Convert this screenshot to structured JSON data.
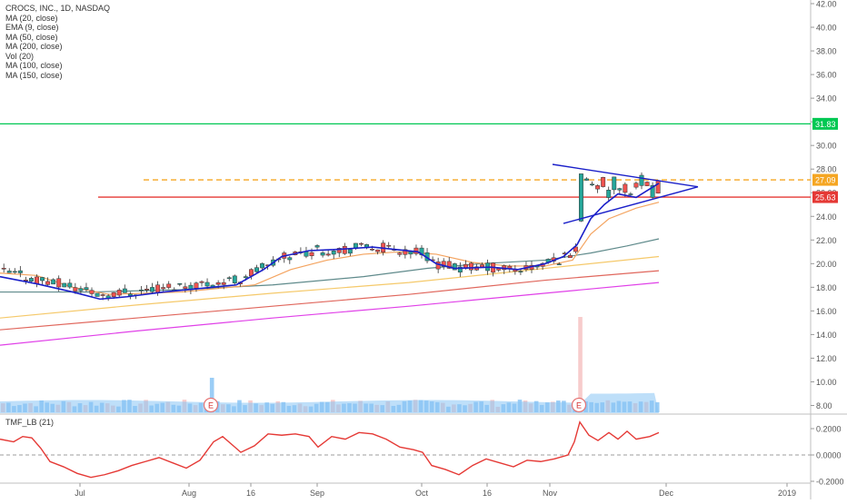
{
  "legend": {
    "title": "CROCS, INC., 1D, NASDAQ",
    "indicators": [
      "MA (20, close)",
      "EMA (9, close)",
      "MA (50, close)",
      "MA (200, close)",
      "Vol (20)",
      "MA (100, close)",
      "MA (150, close)"
    ]
  },
  "colors": {
    "candle_up": "#26a69a",
    "candle_down": "#ef5350",
    "ema9": "#1a1fc9",
    "ma20": "#f4a460",
    "ma50": "#5f8a8b",
    "ma100": "#f5c96a",
    "ma150": "#e0665c",
    "ma200": "#e040e8",
    "volume": "#89c4f4",
    "resistance_line": "#00c853",
    "support_line": "#e53935",
    "breakout_line": "#f5a623",
    "triangle": "#1a1fc9",
    "tmf": "#e53935"
  },
  "chart_data": [
    {
      "type": "candlestick",
      "title": "CROCS, INC., 1D, NASDAQ",
      "ylim": [
        7,
        42.5
      ],
      "y_ticks": [
        "42.00",
        "40.00",
        "38.00",
        "36.00",
        "34.00",
        "32.00",
        "30.00",
        "28.00",
        "26.00",
        "24.00",
        "22.00",
        "20.00",
        "18.00",
        "16.00",
        "14.00",
        "12.00",
        "10.00",
        "8.00"
      ],
      "x_tick_labels": [
        "Jul",
        "Aug",
        "16",
        "Sep",
        "Oct",
        "16",
        "Nov",
        "Dec",
        "2019"
      ],
      "price_labels": [
        {
          "value": "31.83",
          "color": "#00c853"
        },
        {
          "value": "27.09",
          "color": "#f5a623"
        },
        {
          "value": "25.63",
          "color": "#e53935"
        }
      ],
      "levels": {
        "resistance": 31.83,
        "breakout": 27.09,
        "support": 25.63
      },
      "series": [
        {
          "name": "EMA (9, close)",
          "values": [
            [
              0,
              18.9
            ],
            [
              40,
              18.3
            ],
            [
              80,
              17.6
            ],
            [
              110,
              17.0
            ],
            [
              140,
              17.2
            ],
            [
              180,
              17.6
            ],
            [
              220,
              17.9
            ],
            [
              260,
              18.2
            ],
            [
              290,
              19.5
            ],
            [
              310,
              20.6
            ],
            [
              340,
              21.1
            ],
            [
              370,
              21.2
            ],
            [
              410,
              21.4
            ],
            [
              460,
              21.0
            ],
            [
              480,
              20.0
            ],
            [
              500,
              19.6
            ],
            [
              540,
              19.7
            ],
            [
              570,
              19.5
            ],
            [
              600,
              20.0
            ],
            [
              620,
              20.6
            ],
            [
              635,
              21.6
            ],
            [
              650,
              23.8
            ],
            [
              665,
              25.0
            ],
            [
              680,
              25.9
            ],
            [
              700,
              25.6
            ],
            [
              725,
              26.8
            ]
          ]
        },
        {
          "name": "MA (20, close)",
          "values": [
            [
              0,
              19.2
            ],
            [
              40,
              19.0
            ],
            [
              80,
              18.0
            ],
            [
              120,
              17.4
            ],
            [
              160,
              17.5
            ],
            [
              200,
              17.6
            ],
            [
              240,
              17.9
            ],
            [
              280,
              18.2
            ],
            [
              320,
              19.5
            ],
            [
              360,
              20.3
            ],
            [
              400,
              20.8
            ],
            [
              440,
              21.0
            ],
            [
              480,
              20.8
            ],
            [
              520,
              20.1
            ],
            [
              560,
              19.8
            ],
            [
              600,
              19.8
            ],
            [
              630,
              20.3
            ],
            [
              650,
              22.5
            ],
            [
              670,
              23.8
            ],
            [
              700,
              24.7
            ],
            [
              725,
              25.2
            ]
          ]
        },
        {
          "name": "MA (50, close)",
          "values": [
            [
              0,
              17.6
            ],
            [
              100,
              17.6
            ],
            [
              200,
              17.8
            ],
            [
              300,
              18.2
            ],
            [
              400,
              18.9
            ],
            [
              470,
              19.6
            ],
            [
              530,
              20.0
            ],
            [
              600,
              20.3
            ],
            [
              650,
              20.9
            ],
            [
              690,
              21.5
            ],
            [
              725,
              22.1
            ]
          ]
        },
        {
          "name": "MA (100, close)",
          "values": [
            [
              0,
              15.4
            ],
            [
              150,
              16.5
            ],
            [
              300,
              17.5
            ],
            [
              450,
              18.4
            ],
            [
              600,
              19.6
            ],
            [
              725,
              20.6
            ]
          ]
        },
        {
          "name": "MA (150, close)",
          "values": [
            [
              0,
              14.4
            ],
            [
              150,
              15.4
            ],
            [
              300,
              16.4
            ],
            [
              450,
              17.4
            ],
            [
              600,
              18.6
            ],
            [
              725,
              19.4
            ]
          ]
        },
        {
          "name": "MA (200, close)",
          "values": [
            [
              0,
              13.1
            ],
            [
              150,
              14.3
            ],
            [
              300,
              15.4
            ],
            [
              450,
              16.4
            ],
            [
              600,
              17.5
            ],
            [
              725,
              18.4
            ]
          ]
        }
      ],
      "triangle": {
        "upper": [
          [
            608,
            28.4
          ],
          [
            768,
            26.5
          ]
        ],
        "lower": [
          [
            620,
            23.4
          ],
          [
            768,
            26.5
          ]
        ]
      }
    },
    {
      "type": "line",
      "title": "TMF_LB (21)",
      "ylim": [
        -0.22,
        0.28
      ],
      "y_ticks": [
        "0.2000",
        "0.0000",
        "-0.2000"
      ],
      "series": [
        {
          "name": "TMF_LB (21)",
          "values": [
            [
              0,
              0.12
            ],
            [
              15,
              0.1
            ],
            [
              25,
              0.14
            ],
            [
              35,
              0.13
            ],
            [
              45,
              0.05
            ],
            [
              55,
              -0.05
            ],
            [
              70,
              -0.09
            ],
            [
              85,
              -0.14
            ],
            [
              100,
              -0.17
            ],
            [
              115,
              -0.15
            ],
            [
              130,
              -0.12
            ],
            [
              145,
              -0.08
            ],
            [
              160,
              -0.05
            ],
            [
              175,
              -0.02
            ],
            [
              190,
              -0.06
            ],
            [
              205,
              -0.1
            ],
            [
              220,
              -0.04
            ],
            [
              235,
              0.1
            ],
            [
              245,
              0.14
            ],
            [
              255,
              0.08
            ],
            [
              265,
              0.02
            ],
            [
              280,
              0.07
            ],
            [
              295,
              0.16
            ],
            [
              310,
              0.15
            ],
            [
              325,
              0.16
            ],
            [
              340,
              0.14
            ],
            [
              350,
              0.06
            ],
            [
              365,
              0.14
            ],
            [
              380,
              0.12
            ],
            [
              395,
              0.17
            ],
            [
              410,
              0.16
            ],
            [
              425,
              0.12
            ],
            [
              440,
              0.06
            ],
            [
              455,
              0.04
            ],
            [
              465,
              0.02
            ],
            [
              475,
              -0.08
            ],
            [
              490,
              -0.11
            ],
            [
              505,
              -0.15
            ],
            [
              520,
              -0.08
            ],
            [
              535,
              -0.03
            ],
            [
              550,
              -0.06
            ],
            [
              565,
              -0.09
            ],
            [
              580,
              -0.04
            ],
            [
              595,
              -0.05
            ],
            [
              610,
              -0.03
            ],
            [
              625,
              0.0
            ],
            [
              632,
              0.1
            ],
            [
              638,
              0.25
            ],
            [
              648,
              0.15
            ],
            [
              658,
              0.11
            ],
            [
              670,
              0.17
            ],
            [
              680,
              0.12
            ],
            [
              690,
              0.18
            ],
            [
              700,
              0.12
            ],
            [
              715,
              0.14
            ],
            [
              725,
              0.17
            ]
          ]
        }
      ]
    }
  ]
}
